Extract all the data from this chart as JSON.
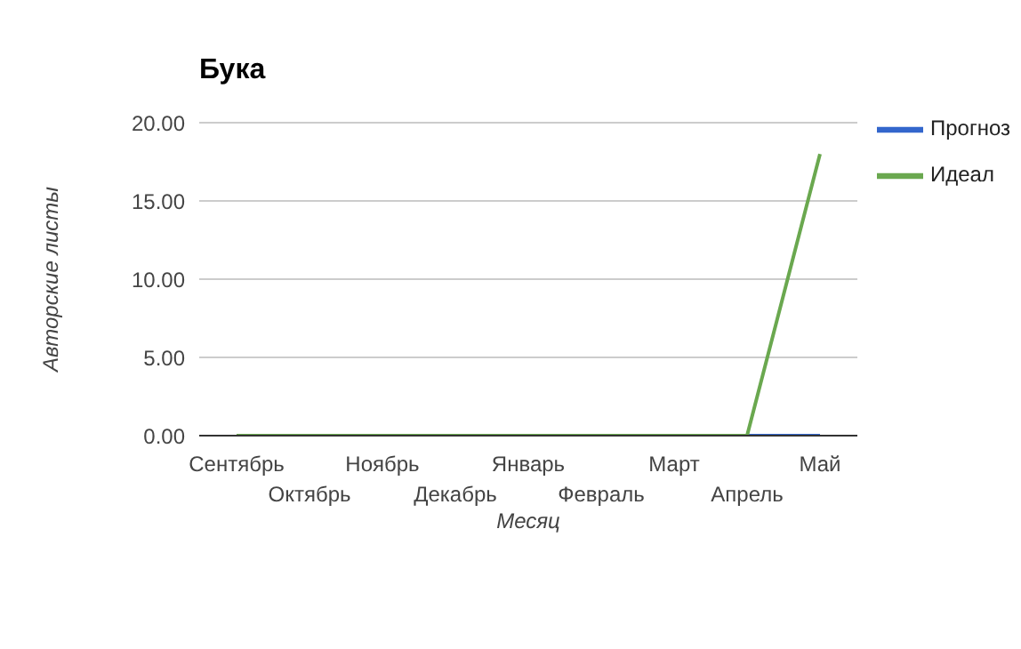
{
  "chart_data": {
    "type": "line",
    "title": "Бука",
    "xlabel": "Месяц",
    "ylabel": "Авторские листы",
    "categories": [
      "Сентябрь",
      "Октябрь",
      "Ноябрь",
      "Декабрь",
      "Январь",
      "Февраль",
      "Март",
      "Апрель",
      "Май"
    ],
    "series": [
      {
        "name": "Прогноз",
        "color": "#3366cc",
        "values": [
          null,
          null,
          null,
          null,
          null,
          null,
          null,
          0,
          0
        ]
      },
      {
        "name": "Идеал",
        "color": "#6aa84f",
        "values": [
          0,
          0,
          0,
          0,
          0,
          0,
          0,
          0,
          18
        ]
      }
    ],
    "ylim": [
      0,
      20
    ],
    "yticks": [
      {
        "value": 0,
        "label": "0.00"
      },
      {
        "value": 5,
        "label": "5.00"
      },
      {
        "value": 10,
        "label": "10.00"
      },
      {
        "value": 15,
        "label": "15.00"
      },
      {
        "value": 20,
        "label": "20.00"
      }
    ],
    "grid": "y",
    "legend": "top right",
    "marker": "none",
    "line_style": "solid"
  }
}
